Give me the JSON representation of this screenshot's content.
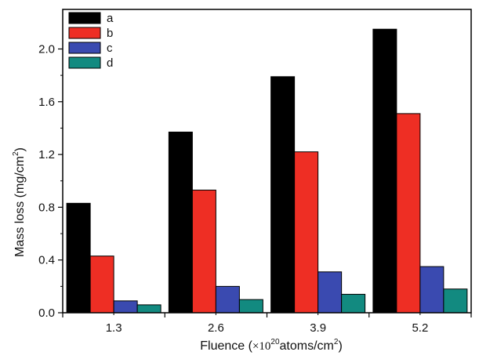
{
  "chart_data": {
    "type": "bar",
    "categories": [
      "1.3",
      "2.6",
      "3.9",
      "5.2"
    ],
    "series": [
      {
        "name": "a",
        "values": [
          0.83,
          1.37,
          1.79,
          2.15
        ],
        "color": "#000000"
      },
      {
        "name": "b",
        "values": [
          0.43,
          0.93,
          1.22,
          1.51
        ],
        "color": "#ee2e24"
      },
      {
        "name": "c",
        "values": [
          0.09,
          0.2,
          0.31,
          0.35
        ],
        "color": "#3a4ab0"
      },
      {
        "name": "d",
        "values": [
          0.06,
          0.1,
          0.14,
          0.18
        ],
        "color": "#128a80"
      }
    ],
    "ylim": [
      0,
      2.3
    ],
    "yticks": [
      "0.0",
      "0.4",
      "0.8",
      "1.2",
      "1.6",
      "2.0"
    ],
    "ylabel": {
      "main": "Mass loss (mg/cm",
      "sup": "2",
      "tail": ")"
    },
    "xlabel": {
      "main": "Fluence (",
      "times": "×10",
      "sup": "20",
      "rest": "atoms/cm",
      "sup2": "2",
      "tail": ")"
    },
    "legend_position": "top-left",
    "grid": false
  }
}
